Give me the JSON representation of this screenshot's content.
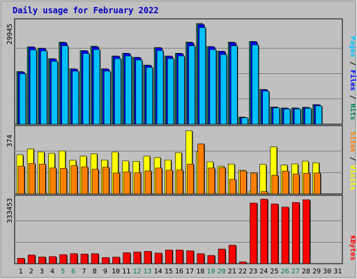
{
  "chart_data": {
    "type": "bar",
    "title": "Daily usage for February 2022",
    "colors": {
      "background": "#C0C0C0",
      "plot": "#C0C0C0",
      "hits": "#00805C",
      "files": "#0000FF",
      "pages": "#00C0FF",
      "visits": "#FFFF00",
      "sites": "#FF8000",
      "kbytes": "#FF0000",
      "weekend_label": "#00805C",
      "weekday_label": "#000000"
    },
    "days": [
      {
        "label": "1",
        "weekend": false
      },
      {
        "label": "2",
        "weekend": false
      },
      {
        "label": "3",
        "weekend": false
      },
      {
        "label": "4",
        "weekend": false
      },
      {
        "label": "5",
        "weekend": true
      },
      {
        "label": "6",
        "weekend": true
      },
      {
        "label": "7",
        "weekend": false
      },
      {
        "label": "8",
        "weekend": false
      },
      {
        "label": "9",
        "weekend": false
      },
      {
        "label": "10",
        "weekend": false
      },
      {
        "label": "11",
        "weekend": false
      },
      {
        "label": "12",
        "weekend": true
      },
      {
        "label": "13",
        "weekend": true
      },
      {
        "label": "14",
        "weekend": false
      },
      {
        "label": "15",
        "weekend": false
      },
      {
        "label": "16",
        "weekend": false
      },
      {
        "label": "17",
        "weekend": false
      },
      {
        "label": "18",
        "weekend": false
      },
      {
        "label": "19",
        "weekend": true
      },
      {
        "label": "20",
        "weekend": true
      },
      {
        "label": "21",
        "weekend": false
      },
      {
        "label": "22",
        "weekend": false
      },
      {
        "label": "23",
        "weekend": false
      },
      {
        "label": "24",
        "weekend": false
      },
      {
        "label": "25",
        "weekend": false
      },
      {
        "label": "26",
        "weekend": true
      },
      {
        "label": "27",
        "weekend": true
      },
      {
        "label": "28",
        "weekend": false
      },
      {
        "label": "29",
        "weekend": false
      },
      {
        "label": "30",
        "weekend": false
      },
      {
        "label": "31",
        "weekend": false
      }
    ],
    "panels": [
      {
        "id": "hits",
        "max_label": "29945",
        "ymax": 29945,
        "side_labels": [
          {
            "text": "Pages",
            "color": "#00C0FF"
          },
          {
            "text": " / ",
            "color": "#000000"
          },
          {
            "text": "Files",
            "color": "#0000FF"
          },
          {
            "text": " / ",
            "color": "#000000"
          },
          {
            "text": "Hits",
            "color": "#00805C"
          }
        ],
        "series": [
          {
            "name": "Hits",
            "color": "#00805C",
            "values": [
              15600,
              22900,
              22500,
              19400,
              24300,
              16400,
              21800,
              23100,
              16400,
              20200,
              21000,
              19800,
              17500,
              22700,
              20200,
              21000,
              24300,
              29800,
              23000,
              21600,
              24300,
              2100,
              24500,
              10300,
              5100,
              4800,
              4800,
              5000,
              5800,
              null,
              null
            ]
          },
          {
            "name": "Files",
            "color": "#0000FF",
            "values": [
              15400,
              22800,
              22400,
              19300,
              24100,
              16300,
              21700,
              22900,
              16300,
              20100,
              20900,
              19700,
              17400,
              22600,
              20100,
              20900,
              24100,
              29500,
              22900,
              21500,
              24100,
              2000,
              24400,
              10200,
              5000,
              4700,
              4700,
              4900,
              5700,
              null,
              null
            ]
          },
          {
            "name": "Pages",
            "color": "#00C0FF",
            "values": [
              14900,
              22000,
              21700,
              18600,
              23200,
              15700,
              20900,
              22100,
              15700,
              19400,
              20200,
              19000,
              16800,
              21800,
              19400,
              20200,
              23200,
              28600,
              22100,
              20600,
              23200,
              1900,
              23500,
              9800,
              4800,
              4500,
              4500,
              4700,
              5400,
              null,
              null
            ]
          }
        ]
      },
      {
        "id": "visits",
        "max_label": "374",
        "ymax": 374,
        "side_labels": [
          {
            "text": "Sites",
            "color": "#FF8000"
          },
          {
            "text": " / ",
            "color": "#000000"
          },
          {
            "text": "Visits",
            "color": "#FFFF00"
          }
        ],
        "series": [
          {
            "name": "Visits",
            "color": "#FFFF00",
            "values": [
              228,
              262,
              244,
              236,
              251,
              196,
              220,
              234,
              198,
              244,
              192,
              190,
              220,
              212,
              198,
              240,
              368,
              246,
              187,
              162,
              174,
              138,
              17,
              172,
              274,
              168,
              175,
              191,
              182,
              null,
              null
            ]
          },
          {
            "name": "Sites",
            "color": "#FF8000",
            "values": [
              162,
              178,
              174,
              151,
              149,
              164,
              158,
              144,
              156,
              122,
              128,
              123,
              134,
              151,
              138,
              139,
              174,
              292,
              151,
              154,
              85,
              134,
              122,
              14,
              109,
              133,
              116,
              121,
              122,
              null,
              null
            ]
          }
        ]
      },
      {
        "id": "kbytes",
        "max_label": "333453",
        "ymax": 333453,
        "side_labels": [
          {
            "text": "KBytes",
            "color": "#FF0000"
          }
        ],
        "series": [
          {
            "name": "KBytes",
            "color": "#FF0000",
            "values": [
              28000,
              45000,
              35000,
              37000,
              47000,
              52000,
              50000,
              52000,
              32000,
              34000,
              57000,
              61000,
              64000,
              55000,
              71000,
              71000,
              67000,
              52000,
              43000,
              76000,
              96000,
              9000,
              315000,
              335000,
              310000,
              294000,
              318000,
              332000,
              null,
              null,
              null
            ]
          }
        ]
      }
    ]
  }
}
